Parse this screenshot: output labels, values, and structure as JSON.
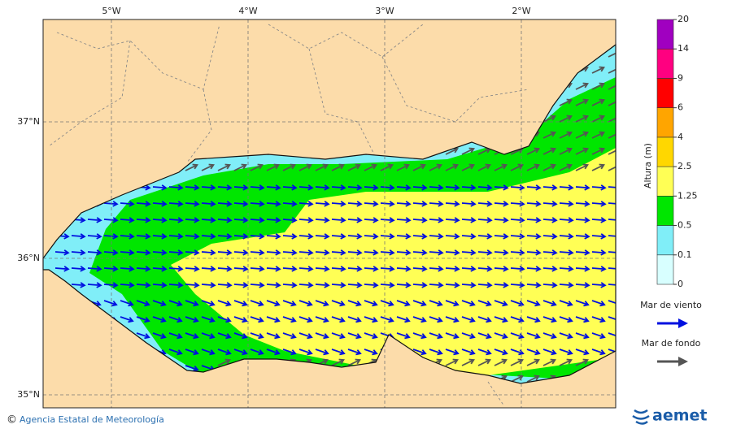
{
  "map": {
    "lon_labels": [
      "5°W",
      "4°W",
      "3°W",
      "2°W"
    ],
    "lat_labels": [
      "37°N",
      "36°N",
      "35°N"
    ]
  },
  "colorbar": {
    "title": "Altura (m)",
    "ticks": [
      0,
      0.1,
      0.5,
      1.25,
      2.5,
      4,
      6,
      9,
      14,
      20
    ],
    "colors": [
      "#d8ffff",
      "#80eef8",
      "#00e600",
      "#ffff55",
      "#ffd700",
      "#ffa500",
      "#ff0000",
      "#ff0080",
      "#a000c0"
    ]
  },
  "legend": [
    {
      "label": "Mar de viento",
      "color": "#0010e0"
    },
    {
      "label": "Mar de fondo",
      "color": "#555555"
    }
  ],
  "footer": {
    "credit": "Agencia Estatal de Meteorología",
    "logo": "aemet"
  }
}
